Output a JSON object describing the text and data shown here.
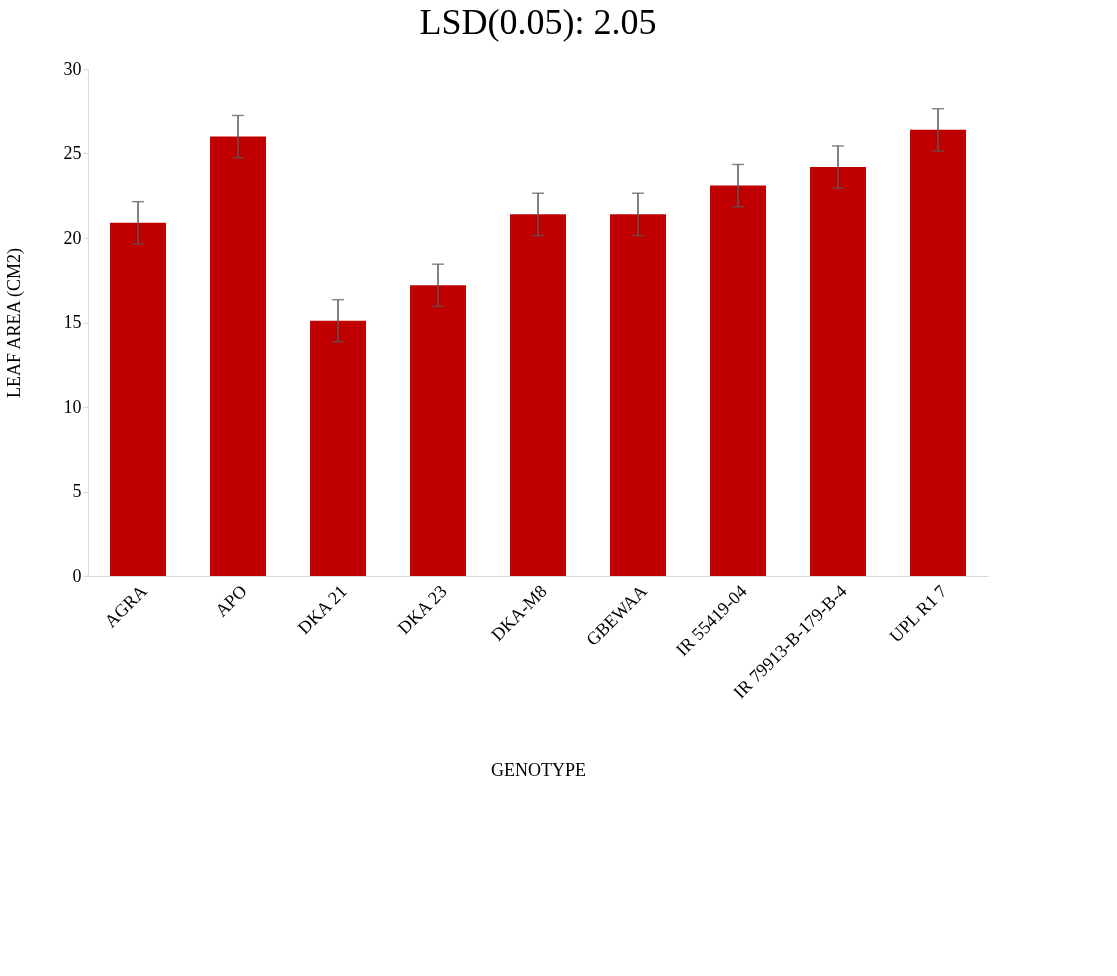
{
  "chart_data": {
    "type": "bar",
    "title": "LSD(0.05): 2.05",
    "xlabel": "GENOTYPE",
    "ylabel": "LEAF AREA (CM2)",
    "categories": [
      "AGRA",
      "APO",
      "DKA 21",
      "DKA 23",
      "DKA-M8",
      "GBEWAA",
      "IR 55419-04",
      "IR 79913-B-179-B-4",
      "UPL R1 7"
    ],
    "values": [
      20.9,
      26.0,
      15.1,
      17.2,
      21.4,
      21.4,
      23.1,
      24.2,
      26.4
    ],
    "errors": [
      1.25,
      1.25,
      1.25,
      1.25,
      1.25,
      1.25,
      1.25,
      1.25,
      1.25
    ],
    "color": "#c00000",
    "ylim": [
      0,
      30
    ],
    "yticks": [
      0,
      5,
      10,
      15,
      20,
      25,
      30
    ],
    "grid": false
  }
}
